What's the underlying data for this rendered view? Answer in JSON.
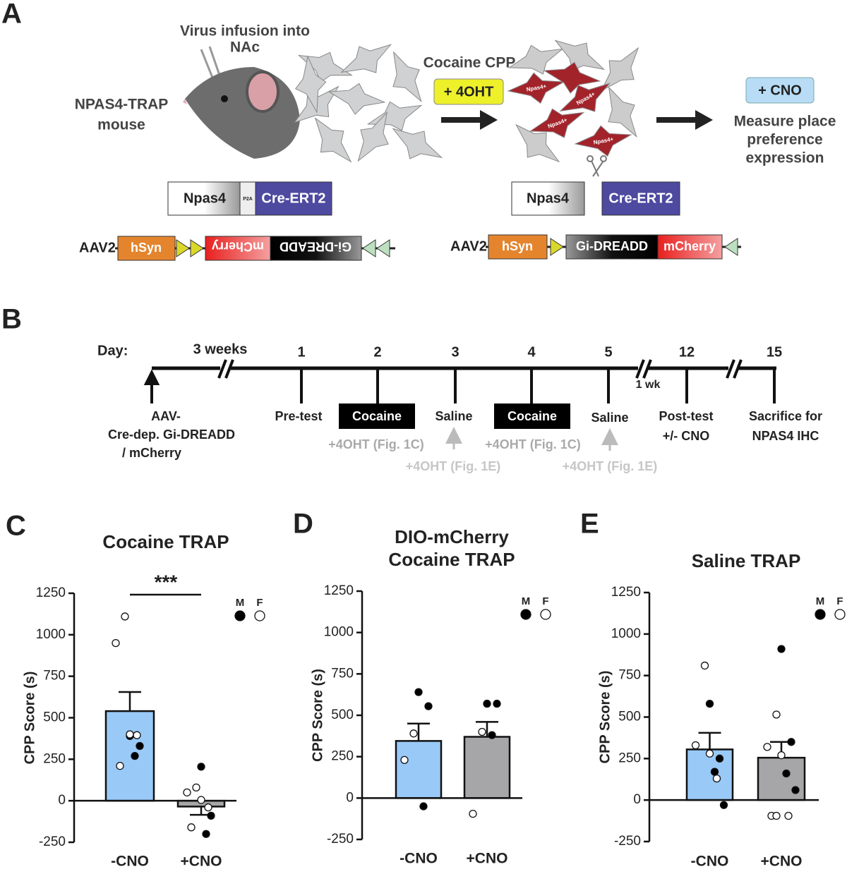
{
  "panel_a": {
    "letter": "A",
    "virus_label": [
      "Virus infusion into",
      "NAc"
    ],
    "mouse_label": [
      "NPAS4-TRAP",
      "mouse"
    ],
    "step1_label": "Cocaine CPP",
    "step1_drug": "+ 4OHT",
    "cell_label": "Npas4+",
    "step2_drug": "+ CNO",
    "step2_label": [
      "Measure place",
      "preference",
      "expression"
    ],
    "construct_left": [
      "Npas4",
      "P2A",
      "Cre-ERT2"
    ],
    "construct_right": [
      "Npas4",
      "Cre-ERT2"
    ],
    "aav_left": [
      "AAV2-",
      "hSyn",
      "mCherry",
      "Gi-DREADD"
    ],
    "aav_right": [
      "AAV2-",
      "hSyn",
      "Gi-DREADD",
      "mCherry"
    ]
  },
  "panel_b": {
    "letter": "B",
    "day_label": "Day:",
    "break_label": "3 weeks",
    "days": [
      "1",
      "2",
      "3",
      "4",
      "5",
      "12",
      "15"
    ],
    "gap_label": "1 wk",
    "aav_event": [
      "AAV-",
      "Cre-dep. Gi-DREADD",
      "/ mCherry"
    ],
    "pretest": "Pre-test",
    "cocaine": "Cocaine",
    "saline": "Saline",
    "posttest": [
      "Post-test",
      "+/- CNO"
    ],
    "sacrifice": [
      "Sacrifice for",
      "NPAS4 IHC"
    ],
    "ohrt_c": "+4OHT (Fig. 1C)",
    "ohrt_e": "+4OHT (Fig. 1E)"
  },
  "chart_data": [
    {
      "type": "bar",
      "panel": "C",
      "title": [
        "Cocaine TRAP"
      ],
      "ylabel": "CPP Score (s)",
      "categories": [
        "-CNO",
        "+CNO"
      ],
      "values": [
        540,
        -35
      ],
      "errors": [
        115,
        50
      ],
      "colors": [
        "#99c9f7",
        "#a6a6a8"
      ],
      "significance": "***",
      "dots": [
        {
          "name": "M",
          "color": "#000000",
          "values": [
            [
              390,
              330,
              270
            ],
            [
              205,
              -90,
              -200
            ]
          ]
        },
        {
          "name": "F",
          "color": "#ffffff",
          "values": [
            [
              1110,
              950,
              400,
              395,
              210
            ],
            [
              80,
              50,
              5,
              -40,
              -160
            ]
          ]
        }
      ],
      "ylim": [
        -250,
        1250
      ],
      "yticks": [
        -250,
        0,
        250,
        500,
        750,
        1000,
        1250
      ]
    },
    {
      "type": "bar",
      "panel": "D",
      "title": [
        "DIO-mCherry",
        "Cocaine TRAP"
      ],
      "ylabel": "CPP Score (s)",
      "categories": [
        "-CNO",
        "+CNO"
      ],
      "values": [
        345,
        370
      ],
      "errors": [
        105,
        90
      ],
      "colors": [
        "#99c9f7",
        "#a6a6a8"
      ],
      "dots": [
        {
          "name": "M",
          "color": "#000000",
          "values": [
            [
              640,
              555,
              -50
            ],
            [
              570,
              570,
              380
            ]
          ]
        },
        {
          "name": "F",
          "color": "#ffffff",
          "values": [
            [
              390,
              230
            ],
            [
              400,
              -95
            ]
          ]
        }
      ],
      "ylim": [
        -250,
        1250
      ],
      "yticks": [
        -250,
        0,
        250,
        500,
        750,
        1000,
        1250
      ]
    },
    {
      "type": "bar",
      "panel": "E",
      "title": [
        "Saline TRAP"
      ],
      "ylabel": "CPP Score (s)",
      "categories": [
        "-CNO",
        "+CNO"
      ],
      "values": [
        305,
        255
      ],
      "errors": [
        100,
        95
      ],
      "colors": [
        "#99c9f7",
        "#a6a6a8"
      ],
      "dots": [
        {
          "name": "M",
          "color": "#000000",
          "values": [
            [
              580,
              250,
              170,
              -30
            ],
            [
              910,
              350,
              160,
              60
            ]
          ]
        },
        {
          "name": "F",
          "color": "#ffffff",
          "values": [
            [
              810,
              330,
              280,
              130
            ],
            [
              515,
              320,
              270,
              -95,
              -95,
              -95
            ]
          ]
        }
      ],
      "ylim": [
        -250,
        1250
      ],
      "yticks": [
        -250,
        0,
        250,
        500,
        750,
        1000,
        1250
      ]
    }
  ]
}
